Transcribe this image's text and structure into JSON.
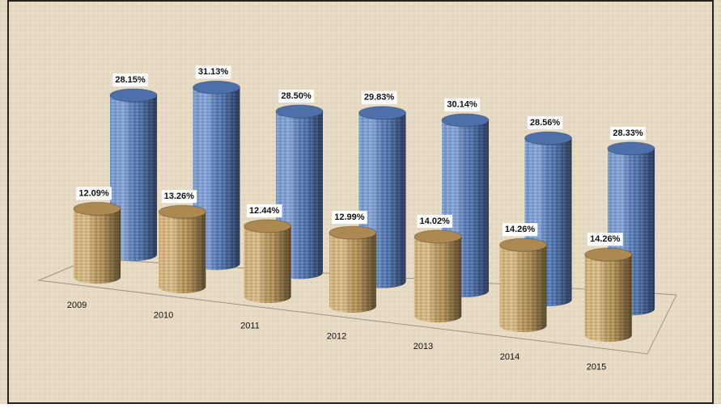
{
  "chart_data": {
    "type": "cylinder3d",
    "categories": [
      "2009",
      "2010",
      "2011",
      "2012",
      "2013",
      "2014",
      "2015"
    ],
    "series": [
      {
        "color": "#5b84c8",
        "values": [
          28.15,
          31.13,
          28.5,
          29.83,
          30.14,
          28.56,
          28.33
        ],
        "value_labels": [
          "28.15%",
          "31.13%",
          "28.50%",
          "29.83%",
          "30.14%",
          "28.56%",
          "28.33%"
        ]
      },
      {
        "color": "#c9a25f",
        "values": [
          12.09,
          13.26,
          12.44,
          12.99,
          14.02,
          14.26,
          14.26
        ],
        "value_labels": [
          "12.09%",
          "13.26%",
          "12.44%",
          "12.99%",
          "14.02%",
          "14.26%",
          "14.26%"
        ]
      }
    ]
  }
}
